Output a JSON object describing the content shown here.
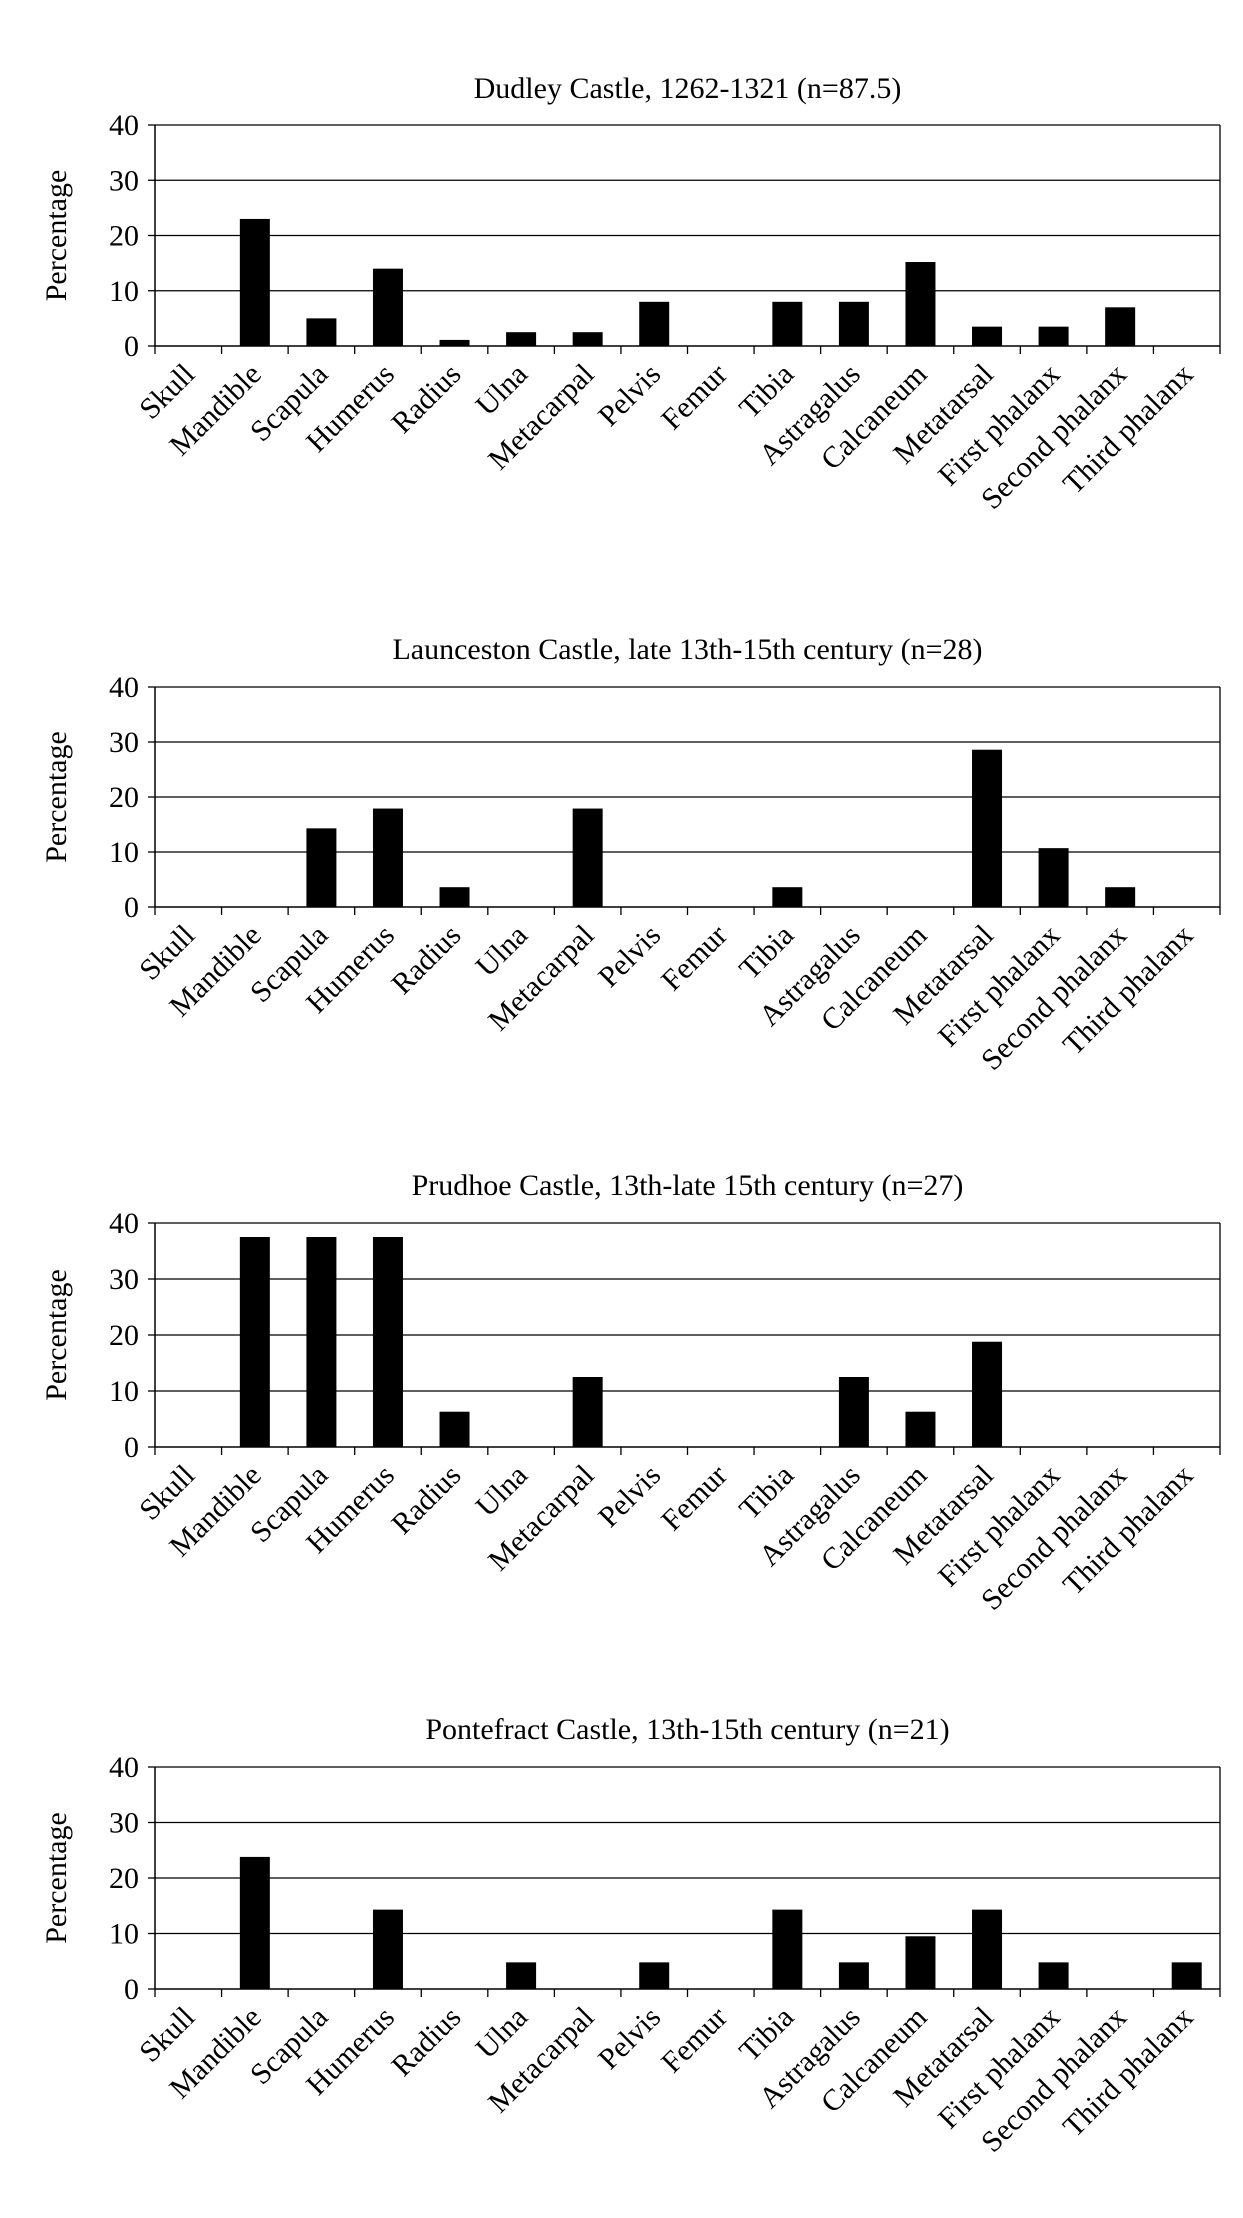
{
  "chart_data": [
    {
      "type": "bar",
      "title": "Dudley Castle, 1262-1321 (n=87.5)",
      "xlabel": "",
      "ylabel": "Percentage",
      "ylim": [
        0,
        40
      ],
      "yticks": [
        "0",
        "10",
        "20",
        "30",
        "40"
      ],
      "grid": true,
      "categories": [
        "Skull",
        "Mandible",
        "Scapula",
        "Humerus",
        "Radius",
        "Ulna",
        "Metacarpal",
        "Pelvis",
        "Femur",
        "Tibia",
        "Astragalus",
        "Calcaneum",
        "Metatarsal",
        "First phalanx",
        "Second phalanx",
        "Third phalanx"
      ],
      "values": [
        0,
        23,
        5,
        14,
        1.1,
        2.5,
        2.5,
        8,
        0,
        8,
        8,
        15.2,
        3.5,
        3.5,
        7,
        0
      ]
    },
    {
      "type": "bar",
      "title": "Launceston Castle, late 13th-15th century (n=28)",
      "xlabel": "",
      "ylabel": "Percentage",
      "ylim": [
        0,
        40
      ],
      "yticks": [
        "0",
        "10",
        "20",
        "30",
        "40"
      ],
      "grid": true,
      "categories": [
        "Skull",
        "Mandible",
        "Scapula",
        "Humerus",
        "Radius",
        "Ulna",
        "Metacarpal",
        "Pelvis",
        "Femur",
        "Tibia",
        "Astragalus",
        "Calcaneum",
        "Metatarsal",
        "First phalanx",
        "Second phalanx",
        "Third phalanx"
      ],
      "values": [
        0,
        0,
        14.3,
        17.9,
        3.6,
        0,
        17.9,
        0,
        0,
        3.6,
        0,
        0,
        28.6,
        10.7,
        3.6,
        0
      ]
    },
    {
      "type": "bar",
      "title": "Prudhoe Castle, 13th-late 15th century (n=27)",
      "xlabel": "",
      "ylabel": "Percentage",
      "ylim": [
        0,
        40
      ],
      "yticks": [
        "0",
        "10",
        "20",
        "30",
        "40"
      ],
      "grid": true,
      "categories": [
        "Skull",
        "Mandible",
        "Scapula",
        "Humerus",
        "Radius",
        "Ulna",
        "Metacarpal",
        "Pelvis",
        "Femur",
        "Tibia",
        "Astragalus",
        "Calcaneum",
        "Metatarsal",
        "First phalanx",
        "Second phalanx",
        "Third phalanx"
      ],
      "values": [
        0,
        37.5,
        37.5,
        37.5,
        6.3,
        0,
        12.5,
        0,
        0,
        0,
        12.5,
        6.3,
        18.8,
        0,
        0,
        0
      ]
    },
    {
      "type": "bar",
      "title": "Pontefract Castle, 13th-15th century (n=21)",
      "xlabel": "",
      "ylabel": "Percentage",
      "ylim": [
        0,
        40
      ],
      "yticks": [
        "0",
        "10",
        "20",
        "30",
        "40"
      ],
      "grid": true,
      "categories": [
        "Skull",
        "Mandible",
        "Scapula",
        "Humerus",
        "Radius",
        "Ulna",
        "Metacarpal",
        "Pelvis",
        "Femur",
        "Tibia",
        "Astragalus",
        "Calcaneum",
        "Metatarsal",
        "First phalanx",
        "Second phalanx",
        "Third phalanx"
      ],
      "values": [
        0,
        23.8,
        0,
        14.3,
        0,
        4.8,
        0,
        4.8,
        0,
        14.3,
        4.8,
        9.5,
        14.3,
        4.8,
        0,
        4.8
      ]
    }
  ]
}
